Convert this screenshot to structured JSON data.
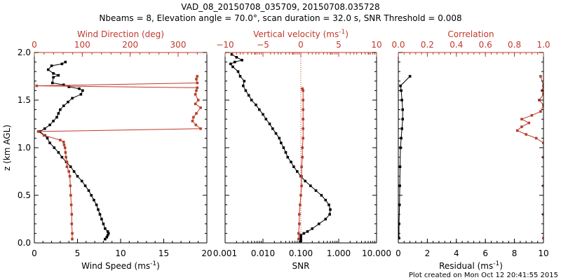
{
  "title_line1": "VAD_08_20150708_035709, 20150708.035728",
  "title_line2": "Nbeams = 8, Elevation angle = 70.0°, scan duration = 32.0 s, SNR Threshold = 0.008",
  "footer": "Plot created on Mon Oct 12 20:41:55 2015",
  "colors": {
    "black": "#000000",
    "red": "#c0392b",
    "brown": "#b5402a"
  },
  "chart_data": [
    {
      "type": "line",
      "panel": "wind",
      "ylabel": "z (km AGL)",
      "ylim": [
        0,
        2.0
      ],
      "yticks": [
        "0.0",
        "0.5",
        "1.0",
        "1.5",
        "2.0"
      ],
      "bottom_axis": {
        "label": "Wind Speed (ms",
        "label_sup": "-1",
        "label_close": ")",
        "xlim": [
          0,
          20
        ],
        "ticks": [
          "0",
          "5",
          "10",
          "15",
          "20"
        ]
      },
      "top_axis": {
        "label": "Wind Direction (deg)",
        "xlim": [
          0,
          360
        ],
        "ticks": [
          "0",
          "100",
          "200",
          "300"
        ]
      },
      "series": [
        {
          "axis": "bottom",
          "color": "black",
          "points": [
            [
              8.2,
              0.04
            ],
            [
              8.4,
              0.06
            ],
            [
              8.5,
              0.08
            ],
            [
              8.6,
              0.1
            ],
            [
              8.5,
              0.12
            ],
            [
              8.2,
              0.15
            ],
            [
              8.0,
              0.2
            ],
            [
              7.8,
              0.25
            ],
            [
              7.6,
              0.3
            ],
            [
              7.4,
              0.35
            ],
            [
              7.2,
              0.4
            ],
            [
              6.9,
              0.45
            ],
            [
              6.6,
              0.5
            ],
            [
              6.3,
              0.55
            ],
            [
              5.9,
              0.6
            ],
            [
              5.5,
              0.65
            ],
            [
              5.0,
              0.7
            ],
            [
              4.6,
              0.75
            ],
            [
              4.2,
              0.8
            ],
            [
              3.7,
              0.85
            ],
            [
              3.2,
              0.9
            ],
            [
              2.8,
              0.95
            ],
            [
              2.3,
              1.0
            ],
            [
              1.8,
              1.05
            ],
            [
              1.5,
              1.1
            ],
            [
              1.2,
              1.13
            ],
            [
              0.6,
              1.17
            ],
            [
              1.2,
              1.2
            ],
            [
              1.8,
              1.24
            ],
            [
              2.2,
              1.28
            ],
            [
              2.6,
              1.32
            ],
            [
              2.8,
              1.36
            ],
            [
              3.0,
              1.4
            ],
            [
              3.4,
              1.44
            ],
            [
              3.9,
              1.48
            ],
            [
              4.4,
              1.52
            ],
            [
              5.4,
              1.56
            ],
            [
              5.6,
              1.6
            ],
            [
              5.2,
              1.62
            ],
            [
              4.0,
              1.64
            ],
            [
              3.4,
              1.66
            ],
            [
              2.1,
              1.68
            ],
            [
              2.2,
              1.74
            ],
            [
              2.8,
              1.76
            ],
            [
              2.2,
              1.78
            ],
            [
              1.6,
              1.82
            ],
            [
              2.0,
              1.86
            ],
            [
              3.2,
              1.88
            ],
            [
              3.6,
              1.9
            ]
          ]
        },
        {
          "axis": "top",
          "color": "brown",
          "points": [
            [
              79,
              0.04
            ],
            [
              79,
              0.1
            ],
            [
              78,
              0.2
            ],
            [
              78,
              0.3
            ],
            [
              77,
              0.4
            ],
            [
              76,
              0.5
            ],
            [
              75,
              0.6
            ],
            [
              74,
              0.7
            ],
            [
              72,
              0.75
            ],
            [
              68,
              0.8
            ],
            [
              68,
              0.85
            ],
            [
              66,
              0.9
            ],
            [
              65,
              0.95
            ],
            [
              64,
              1.0
            ],
            [
              62,
              1.03
            ],
            [
              61,
              1.06
            ],
            [
              54,
              1.08
            ],
            [
              20,
              1.13
            ],
            [
              8,
              1.17
            ],
            [
              347,
              1.2
            ],
            [
              337,
              1.24
            ],
            [
              330,
              1.28
            ],
            [
              332,
              1.32
            ],
            [
              338,
              1.36
            ],
            [
              347,
              1.42
            ],
            [
              336,
              1.46
            ],
            [
              342,
              1.5
            ],
            [
              336,
              1.56
            ],
            [
              338,
              1.6
            ],
            [
              340,
              1.63
            ],
            [
              5,
              1.65
            ],
            [
              340,
              1.68
            ],
            [
              338,
              1.72
            ],
            [
              340,
              1.75
            ]
          ]
        }
      ]
    },
    {
      "type": "line",
      "panel": "vertical",
      "bottom_axis": {
        "label": "SNR",
        "scale": "log",
        "xlim": [
          0.001,
          10.0
        ],
        "ticks": [
          "0.001",
          "0.010",
          "0.100",
          "1.000",
          "10.000"
        ]
      },
      "top_axis": {
        "label": "Vertical velocity (ms",
        "label_sup": "-1",
        "label_close": ")",
        "xlim": [
          -10,
          10
        ],
        "ticks": [
          "−10",
          "−5",
          "0",
          "5",
          "10"
        ]
      },
      "zero_line_dotted": true,
      "series": [
        {
          "axis": "bottom",
          "color": "black",
          "points": [
            [
              0.1,
              0.02
            ],
            [
              0.1,
              0.04
            ],
            [
              0.1,
              0.06
            ],
            [
              0.1,
              0.08
            ],
            [
              0.12,
              0.1
            ],
            [
              0.15,
              0.12
            ],
            [
              0.2,
              0.15
            ],
            [
              0.3,
              0.2
            ],
            [
              0.45,
              0.25
            ],
            [
              0.58,
              0.3
            ],
            [
              0.6,
              0.35
            ],
            [
              0.55,
              0.4
            ],
            [
              0.45,
              0.45
            ],
            [
              0.35,
              0.5
            ],
            [
              0.25,
              0.55
            ],
            [
              0.18,
              0.6
            ],
            [
              0.13,
              0.65
            ],
            [
              0.1,
              0.7
            ],
            [
              0.08,
              0.75
            ],
            [
              0.065,
              0.8
            ],
            [
              0.055,
              0.85
            ],
            [
              0.045,
              0.9
            ],
            [
              0.04,
              0.95
            ],
            [
              0.035,
              1.0
            ],
            [
              0.03,
              1.05
            ],
            [
              0.027,
              1.1
            ],
            [
              0.022,
              1.15
            ],
            [
              0.018,
              1.2
            ],
            [
              0.015,
              1.25
            ],
            [
              0.012,
              1.3
            ],
            [
              0.01,
              1.35
            ],
            [
              0.008,
              1.4
            ],
            [
              0.0065,
              1.45
            ],
            [
              0.005,
              1.5
            ],
            [
              0.0042,
              1.55
            ],
            [
              0.0035,
              1.6
            ],
            [
              0.003,
              1.65
            ],
            [
              0.0032,
              1.7
            ],
            [
              0.0025,
              1.75
            ],
            [
              0.0022,
              1.8
            ],
            [
              0.0016,
              1.85
            ],
            [
              0.0014,
              1.88
            ],
            [
              0.0018,
              1.9
            ],
            [
              0.0028,
              1.92
            ],
            [
              0.002,
              1.95
            ],
            [
              0.0015,
              1.98
            ]
          ]
        },
        {
          "axis": "top",
          "color": "brown",
          "points": [
            [
              -0.3,
              0.04
            ],
            [
              -0.3,
              0.1
            ],
            [
              -0.2,
              0.2
            ],
            [
              -0.2,
              0.3
            ],
            [
              -0.1,
              0.4
            ],
            [
              0.0,
              0.5
            ],
            [
              0.1,
              0.6
            ],
            [
              0.1,
              0.7
            ],
            [
              0.1,
              0.8
            ],
            [
              0.2,
              0.9
            ],
            [
              0.2,
              1.0
            ],
            [
              0.3,
              1.1
            ],
            [
              0.3,
              1.2
            ],
            [
              0.3,
              1.3
            ],
            [
              0.3,
              1.4
            ],
            [
              0.3,
              1.5
            ],
            [
              0.3,
              1.6
            ],
            [
              0.2,
              1.62
            ]
          ]
        }
      ]
    },
    {
      "type": "line",
      "panel": "correlation",
      "bottom_axis": {
        "label": "Residual (ms",
        "label_sup": "-1",
        "label_close": ")",
        "xlim": [
          0,
          10
        ],
        "ticks": [
          "0",
          "2",
          "4",
          "6",
          "8",
          "10"
        ]
      },
      "top_axis": {
        "label": "Correlation",
        "xlim": [
          0.0,
          1.0
        ],
        "ticks": [
          "0.0",
          "0.2",
          "0.4",
          "0.6",
          "0.8",
          "1.0"
        ]
      },
      "series": [
        {
          "axis": "bottom",
          "color": "black",
          "points": [
            [
              0.05,
              0.05
            ],
            [
              0.05,
              0.2
            ],
            [
              0.08,
              0.4
            ],
            [
              0.1,
              0.6
            ],
            [
              0.12,
              0.8
            ],
            [
              0.15,
              1.0
            ],
            [
              0.2,
              1.1
            ],
            [
              0.25,
              1.2
            ],
            [
              0.3,
              1.3
            ],
            [
              0.3,
              1.4
            ],
            [
              0.25,
              1.5
            ],
            [
              0.2,
              1.6
            ],
            [
              0.15,
              1.65
            ],
            [
              0.8,
              1.75
            ]
          ]
        },
        {
          "axis": "top",
          "color": "brown",
          "points": [
            [
              1.0,
              0.05
            ],
            [
              1.0,
              0.3
            ],
            [
              1.0,
              0.6
            ],
            [
              1.0,
              0.9
            ],
            [
              1.0,
              1.05
            ],
            [
              0.95,
              1.1
            ],
            [
              0.88,
              1.14
            ],
            [
              0.82,
              1.18
            ],
            [
              0.85,
              1.22
            ],
            [
              0.9,
              1.26
            ],
            [
              0.85,
              1.3
            ],
            [
              0.92,
              1.34
            ],
            [
              0.98,
              1.38
            ],
            [
              1.0,
              1.45
            ],
            [
              0.97,
              1.5
            ],
            [
              1.0,
              1.56
            ],
            [
              0.99,
              1.6
            ],
            [
              1.0,
              1.65
            ],
            [
              0.98,
              1.75
            ]
          ]
        }
      ]
    }
  ]
}
